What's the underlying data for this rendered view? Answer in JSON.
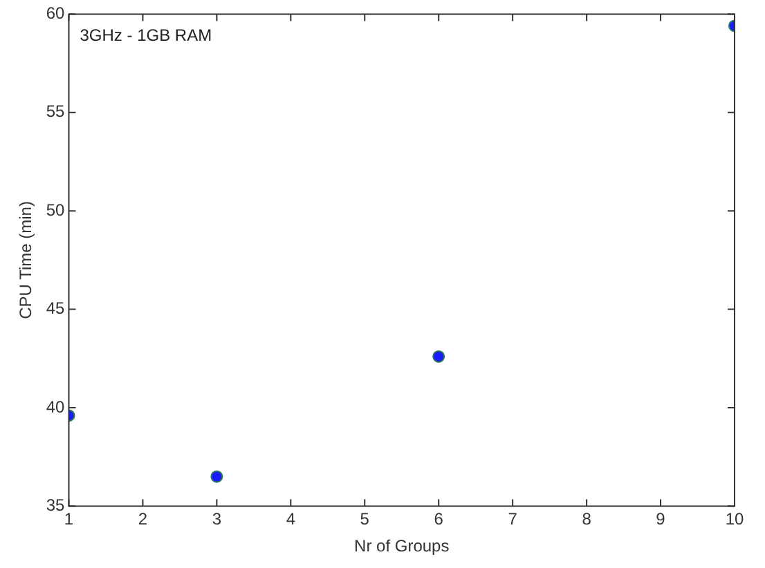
{
  "chart_data": {
    "type": "scatter",
    "xlabel": "Nr of Groups",
    "ylabel": "CPU Time (min)",
    "annotations": [
      "3GHz - 1GB RAM"
    ],
    "x": [
      1,
      3,
      6,
      10
    ],
    "series": [
      {
        "color": "#1a1aff",
        "values": [
          39.6,
          36.5,
          42.6,
          59.4
        ]
      }
    ],
    "xlim": [
      1,
      10
    ],
    "xticks": [
      1,
      2,
      3,
      4,
      5,
      6,
      7,
      8,
      9,
      10
    ],
    "ylim": [
      35,
      60
    ],
    "yticks": [
      35,
      40,
      45,
      50,
      55,
      60
    ],
    "grid": false,
    "legend": false,
    "marker": "circle"
  }
}
